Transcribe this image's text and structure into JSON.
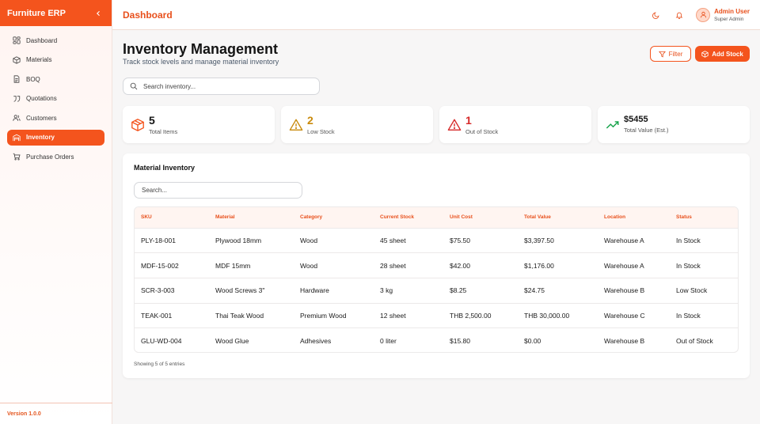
{
  "sidebar": {
    "brand": "Furniture ERP",
    "items": [
      {
        "label": "Dashboard",
        "icon": "dashboard-icon"
      },
      {
        "label": "Materials",
        "icon": "box-icon"
      },
      {
        "label": "BOQ",
        "icon": "document-icon"
      },
      {
        "label": "Quotations",
        "icon": "quote-icon"
      },
      {
        "label": "Customers",
        "icon": "users-icon"
      },
      {
        "label": "Inventory",
        "icon": "warehouse-icon",
        "active": true
      },
      {
        "label": "Purchase Orders",
        "icon": "cart-icon"
      }
    ],
    "version": "Version 1.0.0"
  },
  "topbar": {
    "title": "Dashboard",
    "user_name": "Admin User",
    "user_role": "Super Admin"
  },
  "page": {
    "title": "Inventory Management",
    "subtitle": "Track stock levels and manage material inventory",
    "filter_label": "Filter",
    "add_label": "Add Stock",
    "search_placeholder": "Search inventory..."
  },
  "stats": [
    {
      "value": "5",
      "label": "Total Items",
      "icon": "box-icon",
      "color": "#f4541d"
    },
    {
      "value": "2",
      "label": "Low Stock",
      "icon": "warning-icon",
      "color": "#c98a0c"
    },
    {
      "value": "1",
      "label": "Out of Stock",
      "icon": "alert-icon",
      "color": "#d62828"
    },
    {
      "value": "$5455",
      "label": "Total Value (Est.)",
      "icon": "trending-up-icon",
      "color": "#16a34a"
    }
  ],
  "table": {
    "title": "Material Inventory",
    "search_placeholder": "Search...",
    "columns": [
      "SKU",
      "Material",
      "Category",
      "Current Stock",
      "Unit Cost",
      "Total Value",
      "Location",
      "Status"
    ],
    "rows": [
      [
        "PLY-18-001",
        "Plywood 18mm",
        "Wood",
        "45 sheet",
        "$75.50",
        "$3,397.50",
        "Warehouse A",
        "In Stock"
      ],
      [
        "MDF-15-002",
        "MDF 15mm",
        "Wood",
        "28 sheet",
        "$42.00",
        "$1,176.00",
        "Warehouse A",
        "In Stock"
      ],
      [
        "SCR-3-003",
        "Wood Screws 3\"",
        "Hardware",
        "3 kg",
        "$8.25",
        "$24.75",
        "Warehouse B",
        "Low Stock"
      ],
      [
        "TEAK-001",
        "Thai Teak Wood",
        "Premium Wood",
        "12 sheet",
        "THB 2,500.00",
        "THB 30,000.00",
        "Warehouse C",
        "In Stock"
      ],
      [
        "GLU-WD-004",
        "Wood Glue",
        "Adhesives",
        "0 liter",
        "$15.80",
        "$0.00",
        "Warehouse B",
        "Out of Stock"
      ]
    ],
    "footer": "Showing 5 of 5 entries"
  },
  "colors": {
    "accent": "#f4541d",
    "accent_text": "#e8501c"
  }
}
